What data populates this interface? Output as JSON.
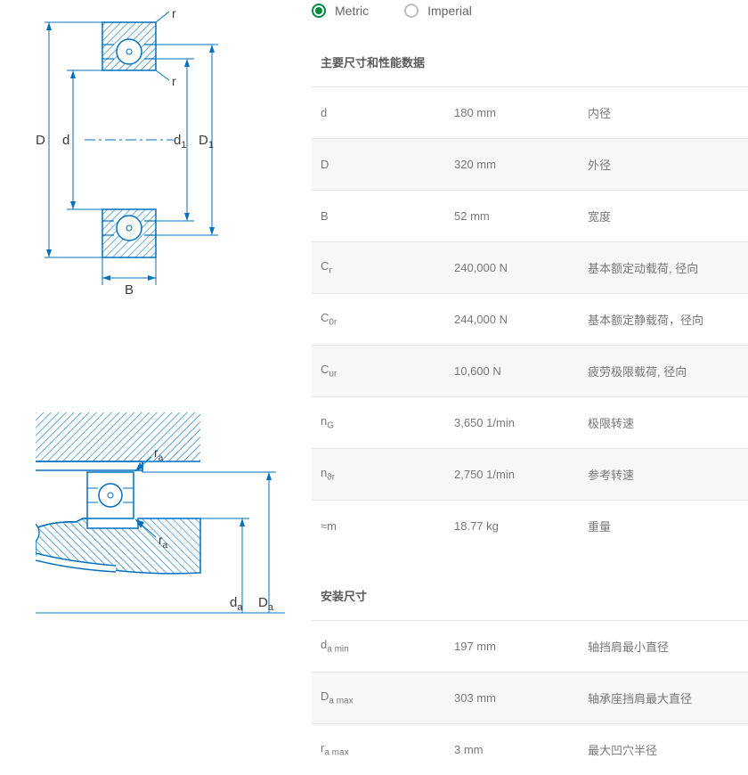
{
  "units": {
    "metric": "Metric",
    "imperial": "Imperial",
    "selected": "metric"
  },
  "diagram1": {
    "labels": {
      "D": "D",
      "d": "d",
      "d1": "d",
      "d1sub": "1",
      "D1": "D",
      "D1sub": "1",
      "B": "B",
      "r1": "r",
      "r2": "r"
    },
    "stroke": "#0070c0",
    "fill_hatch": "#0070c0",
    "text_color": "#3a3a3a"
  },
  "diagram2": {
    "labels": {
      "ra1": "r",
      "ra1sub": "a",
      "ra2": "r",
      "ra2sub": "a",
      "da": "d",
      "dasub": "a",
      "Da": "D",
      "Dasub": "a"
    },
    "stroke": "#0070c0",
    "text_color": "#3a3a3a"
  },
  "sections": {
    "main": {
      "title": "主要尺寸和性能数据",
      "rows": [
        {
          "sym": "d",
          "sub": "",
          "val": "180 mm",
          "desc": "内径"
        },
        {
          "sym": "D",
          "sub": "",
          "val": "320 mm",
          "desc": "外径"
        },
        {
          "sym": "B",
          "sub": "",
          "val": "52 mm",
          "desc": "宽度"
        },
        {
          "sym": "C",
          "sub": "r",
          "val": "240,000 N",
          "desc": "基本额定动载荷, 径向"
        },
        {
          "sym": "C",
          "sub": "0r",
          "val": "244,000 N",
          "desc": "基本额定静载荷，径向"
        },
        {
          "sym": "C",
          "sub": "ur",
          "val": "10,600 N",
          "desc": "疲劳极限载荷, 径向"
        },
        {
          "sym": "n",
          "sub": "G",
          "val": "3,650 1/min",
          "desc": "极限转速"
        },
        {
          "sym": "n",
          "sub": "ϑr",
          "val": "2,750 1/min",
          "desc": "参考转速"
        },
        {
          "sym": "≈m",
          "sub": "",
          "val": "18.77 kg",
          "desc": "重量"
        }
      ]
    },
    "mounting": {
      "title": "安装尺寸",
      "rows": [
        {
          "sym": "d",
          "sub": "a min",
          "val": "197 mm",
          "desc": "轴挡肩最小直径"
        },
        {
          "sym": "D",
          "sub": "a max",
          "val": "303 mm",
          "desc": "轴承座挡肩最大直径"
        },
        {
          "sym": "r",
          "sub": "a max",
          "val": "3 mm",
          "desc": "最大凹穴半径"
        }
      ]
    }
  }
}
